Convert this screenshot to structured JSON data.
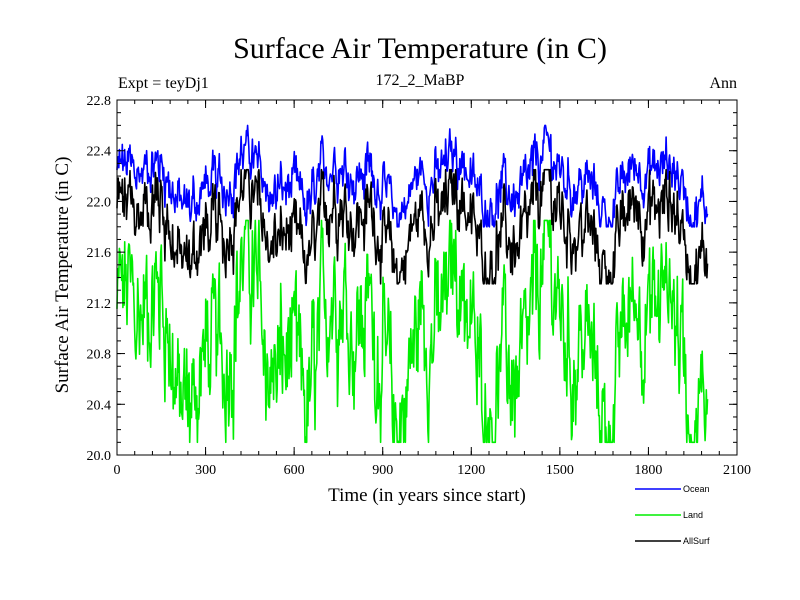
{
  "chart_data": {
    "type": "line",
    "title": "Surface Air Temperature (in C)",
    "expt_label": "Expt = teyDj1",
    "subtitle": "172_2_MaBP",
    "season_label": "Ann",
    "xlabel": "Time (in years since start)",
    "ylabel": "Surface Air Temperature (in C)",
    "xlim": [
      0,
      2100
    ],
    "ylim": [
      20.0,
      22.8
    ],
    "x_ticks": [
      "0",
      "300",
      "600",
      "900",
      "1200",
      "1500",
      "1800",
      "2100"
    ],
    "y_ticks": [
      "20.0",
      "20.4",
      "20.8",
      "21.2",
      "21.6",
      "22.0",
      "22.4",
      "22.8"
    ],
    "x_range": [
      0,
      2000
    ],
    "series": [
      {
        "name": "Ocean",
        "color": "#0000ff",
        "mean": 22.15,
        "amplitude": 0.18,
        "min": 21.8,
        "max": 22.6
      },
      {
        "name": "Land",
        "color": "#00ee00",
        "mean": 20.9,
        "amplitude": 0.5,
        "min": 20.1,
        "max": 21.85
      },
      {
        "name": "AllSurf",
        "color": "#000000",
        "mean": 21.8,
        "amplitude": 0.25,
        "min": 21.35,
        "max": 22.25
      }
    ]
  }
}
